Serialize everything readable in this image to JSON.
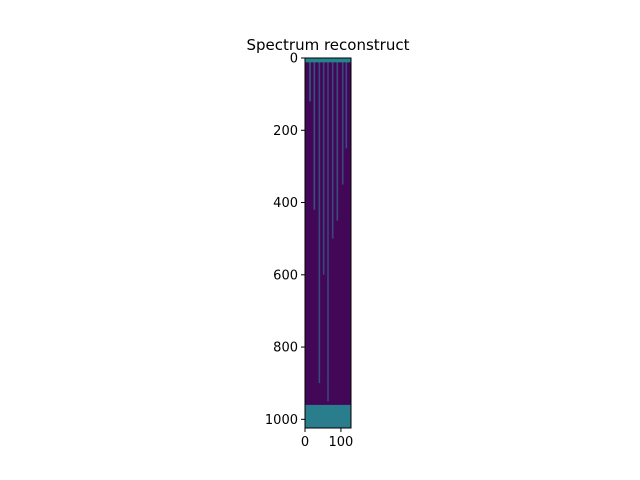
{
  "chart_data": {
    "type": "heatmap",
    "title": "Spectrum reconstruct",
    "xlabel": "",
    "ylabel": "",
    "colormap": "viridis",
    "grid": false,
    "n_rows": 1024,
    "n_cols": 128,
    "xlim": [
      0,
      128
    ],
    "ylim": [
      1024,
      0
    ],
    "x_ticks": [
      0,
      100
    ],
    "y_ticks": [
      0,
      200,
      400,
      600,
      800,
      1000
    ],
    "background_value": 0.02,
    "ridges": [
      {
        "col": 14,
        "row_start": 5,
        "row_end": 120,
        "value": 0.4
      },
      {
        "col": 26,
        "row_start": 5,
        "row_end": 420,
        "value": 0.35
      },
      {
        "col": 40,
        "row_start": 5,
        "row_end": 900,
        "value": 0.3
      },
      {
        "col": 52,
        "row_start": 5,
        "row_end": 600,
        "value": 0.3
      },
      {
        "col": 64,
        "row_start": 5,
        "row_end": 950,
        "value": 0.28
      },
      {
        "col": 77,
        "row_start": 5,
        "row_end": 500,
        "value": 0.3
      },
      {
        "col": 90,
        "row_start": 5,
        "row_end": 450,
        "value": 0.32
      },
      {
        "col": 105,
        "row_start": 5,
        "row_end": 350,
        "value": 0.3
      },
      {
        "col": 115,
        "row_start": 5,
        "row_end": 250,
        "value": 0.3
      }
    ],
    "top_band": {
      "row_start": 0,
      "row_end": 12,
      "value": 0.45
    },
    "bottom_band": {
      "row_start": 960,
      "row_end": 1024,
      "value": 0.42
    }
  }
}
